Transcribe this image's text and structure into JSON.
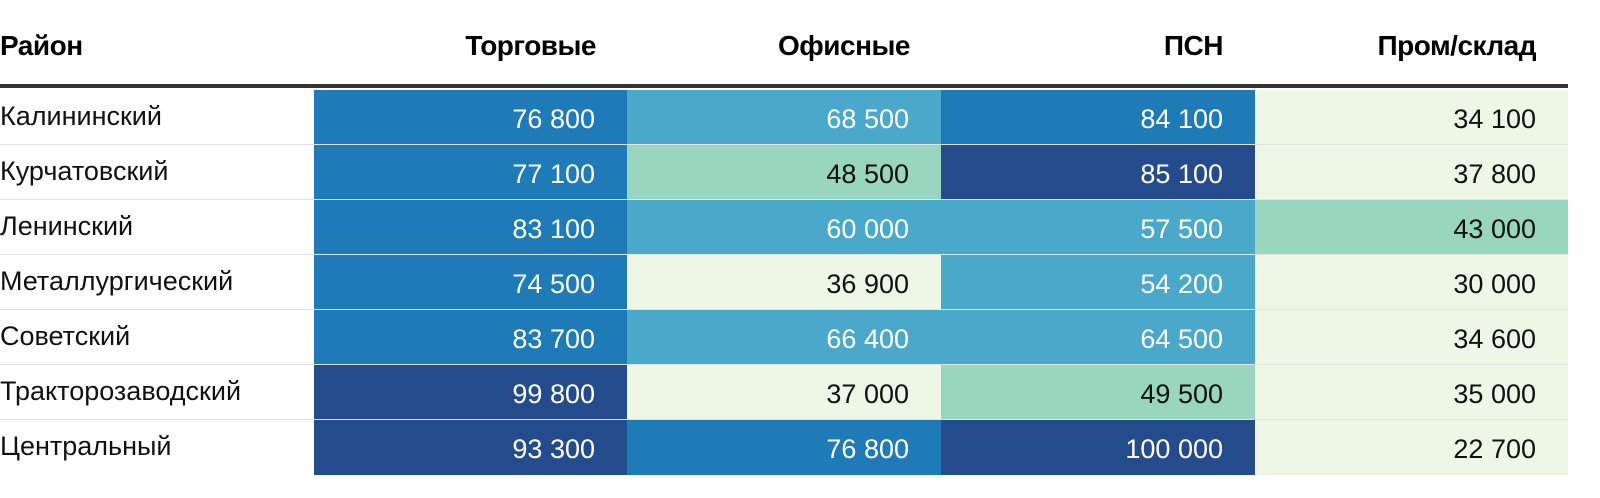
{
  "chart_data": {
    "type": "table",
    "columns": [
      "Район",
      "Торговые",
      "Офисные",
      "ПСН",
      "Пром/склад"
    ],
    "rows": [
      {
        "district": "Калининский",
        "values": [
          "76 800",
          "68 500",
          "84 100",
          "34 100"
        ],
        "colors": [
          "#1f7ab8",
          "#4aa8cb",
          "#1f7ab8",
          "#eef7e6"
        ]
      },
      {
        "district": "Курчатовский",
        "values": [
          "77 100",
          "48 500",
          "85 100",
          "37 800"
        ],
        "colors": [
          "#1f7ab8",
          "#98d6c0",
          "#244c8c",
          "#eef7e6"
        ]
      },
      {
        "district": "Ленинский",
        "values": [
          "83 100",
          "60 000",
          "57 500",
          "43 000"
        ],
        "colors": [
          "#1f7ab8",
          "#4aa8cb",
          "#4aa8cb",
          "#98d6c0"
        ]
      },
      {
        "district": "Металлургический",
        "values": [
          "74 500",
          "36 900",
          "54 200",
          "30 000"
        ],
        "colors": [
          "#1f7ab8",
          "#eef7e6",
          "#4aa8cb",
          "#eef7e6"
        ]
      },
      {
        "district": "Советский",
        "values": [
          "83 700",
          "66 400",
          "64 500",
          "34 600"
        ],
        "colors": [
          "#1f7ab8",
          "#4aa8cb",
          "#4aa8cb",
          "#eef7e6"
        ]
      },
      {
        "district": "Тракторозаводский",
        "values": [
          "99 800",
          "37 000",
          "49 500",
          "35 000"
        ],
        "colors": [
          "#244c8c",
          "#eef7e6",
          "#98d6c0",
          "#eef7e6"
        ]
      },
      {
        "district": "Центральный",
        "values": [
          "93 300",
          "76 800",
          "100 000",
          "22 700"
        ],
        "colors": [
          "#244c8c",
          "#1f7ab8",
          "#244c8c",
          "#eef7e6"
        ]
      }
    ],
    "palette": {
      "lightest": "#eef7e6",
      "light": "#98d6c0",
      "mid": "#4aa8cb",
      "strong": "#1f7ab8",
      "darkest": "#244c8c",
      "text_dark": "#111111",
      "text_light": "#ffffff"
    }
  }
}
